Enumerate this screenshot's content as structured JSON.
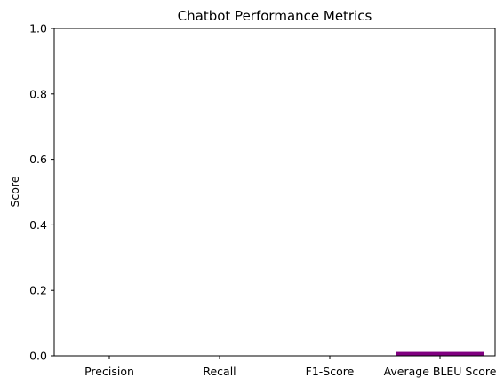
{
  "chart_data": {
    "type": "bar",
    "title": "Chatbot Performance Metrics",
    "xlabel": "",
    "ylabel": "Score",
    "categories": [
      "Precision",
      "Recall",
      "F1-Score",
      "Average BLEU Score"
    ],
    "values": [
      0,
      0,
      0,
      0.012
    ],
    "colors": [
      "#1f77b4",
      "#2ca02c",
      "#d62728",
      "#800080"
    ],
    "ylim": [
      0,
      1
    ],
    "yticks": [
      0.0,
      0.2,
      0.4,
      0.6,
      0.8,
      1.0
    ],
    "ytick_labels": [
      "0.0",
      "0.2",
      "0.4",
      "0.6",
      "0.8",
      "1.0"
    ],
    "grid": false,
    "legend": "none"
  }
}
